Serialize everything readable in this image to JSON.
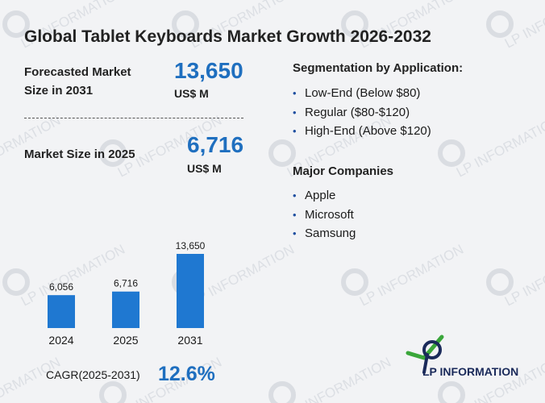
{
  "title": "Global Tablet Keyboards Market Growth 2026-2032",
  "forecast": {
    "label_line1": "Forecasted Market",
    "label_line2": "Size in 2031",
    "value": "13,650",
    "unit": "US$ M"
  },
  "current": {
    "label": "Market Size in 2025",
    "value": "6,716",
    "unit": "US$ M"
  },
  "segmentation": {
    "heading": "Segmentation by Application:",
    "items": [
      "Low-End (Below $80)",
      "Regular ($80-$120)",
      "High-End (Above $120)"
    ]
  },
  "companies": {
    "heading": "Major Companies",
    "items": [
      "Apple",
      "Microsoft",
      "Samsung"
    ]
  },
  "cagr": {
    "label": "CAGR(2025-2031)",
    "value": "12.6%"
  },
  "logo": {
    "text": "LP INFORMATION"
  },
  "watermark": {
    "text": "LP INFORMATION"
  },
  "colors": {
    "accent": "#1f6fbf",
    "bar": "#1f78d1",
    "logo_green": "#3aa63a",
    "logo_navy": "#1a2a5a"
  },
  "chart_data": {
    "type": "bar",
    "categories": [
      "2024",
      "2025",
      "2031"
    ],
    "values": [
      6056,
      6716,
      13650
    ],
    "value_labels": [
      "6,056",
      "6,716",
      "13,650"
    ],
    "title": "",
    "xlabel": "",
    "ylabel": "",
    "ylim": [
      0,
      13650
    ],
    "grid": false,
    "legend": "none"
  }
}
